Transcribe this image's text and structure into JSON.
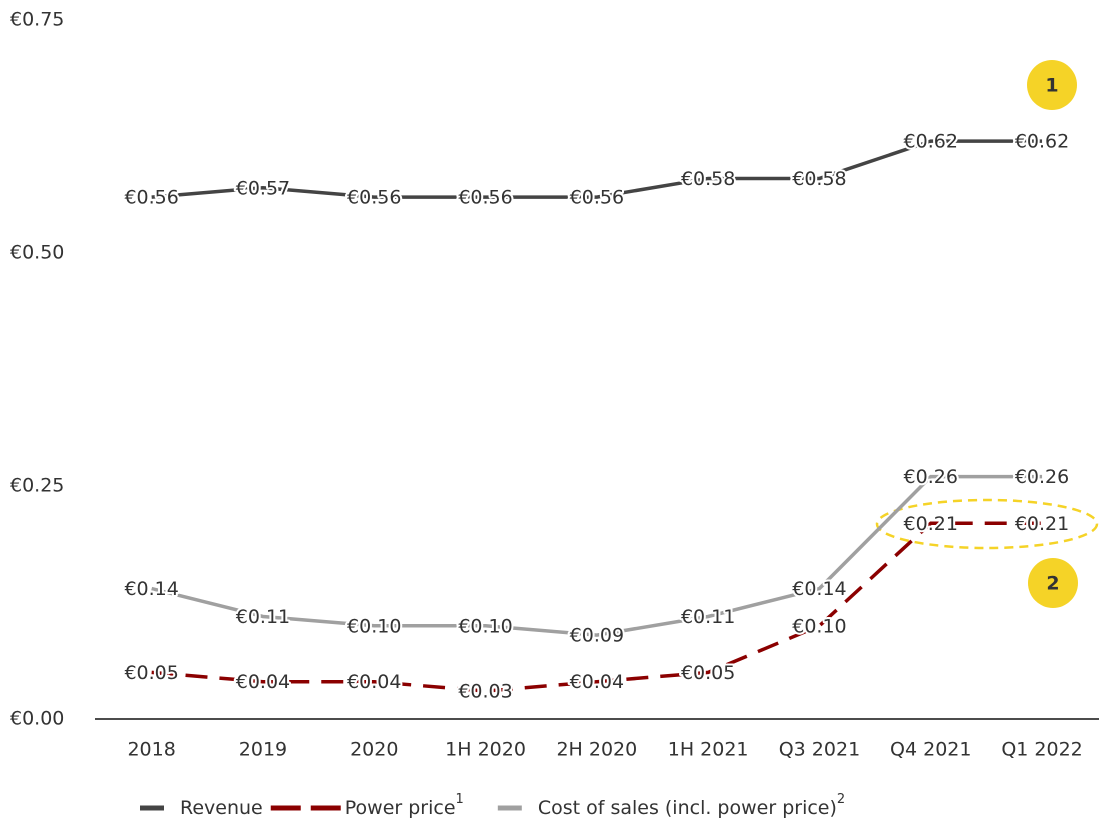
{
  "chart_data": {
    "type": "line",
    "categories": [
      "2018",
      "2019",
      "2020",
      "1H 2020",
      "2H 2020",
      "1H 2021",
      "Q3 2021",
      "Q4 2021",
      "Q1 2022"
    ],
    "series": [
      {
        "name": "Revenue",
        "color": "#444444",
        "dash": false,
        "values": [
          0.56,
          0.57,
          0.56,
          0.56,
          0.56,
          0.58,
          0.58,
          0.62,
          0.62
        ],
        "value_labels": [
          "€0.56",
          "€0.57",
          "€0.56",
          "€0.56",
          "€0.56",
          "€0.58",
          "€0.58",
          "€0.62",
          "€0.62"
        ]
      },
      {
        "name": "Power price",
        "name_superscript": "1",
        "color": "#8b0000",
        "dash": true,
        "values": [
          0.05,
          0.04,
          0.04,
          0.03,
          0.04,
          0.05,
          0.1,
          0.21,
          0.21
        ],
        "value_labels": [
          "€0.05",
          "€0.04",
          "€0.04",
          "€0.03",
          "€0.04",
          "€0.05",
          "€0.10",
          "€0.21",
          "€0.21"
        ]
      },
      {
        "name": "Cost of sales (incl. power price)",
        "name_superscript": "2",
        "color": "#a0a0a0",
        "dash": false,
        "values": [
          0.14,
          0.11,
          0.1,
          0.1,
          0.09,
          0.11,
          0.14,
          0.26,
          0.26
        ],
        "value_labels": [
          "€0.14",
          "€0.11",
          "€0.10",
          "€0.10",
          "€0.09",
          "€0.11",
          "€0.14",
          "€0.26",
          "€0.26"
        ]
      }
    ],
    "ylim": [
      0,
      0.75
    ],
    "yticks": [
      {
        "value": 0,
        "label": "€0.00"
      },
      {
        "value": 0.25,
        "label": "€0.25"
      },
      {
        "value": 0.5,
        "label": "€0.50"
      },
      {
        "value": 0.75,
        "label": "€0.75"
      }
    ],
    "annotations": [
      "1",
      "2"
    ],
    "legend": "bottom"
  }
}
